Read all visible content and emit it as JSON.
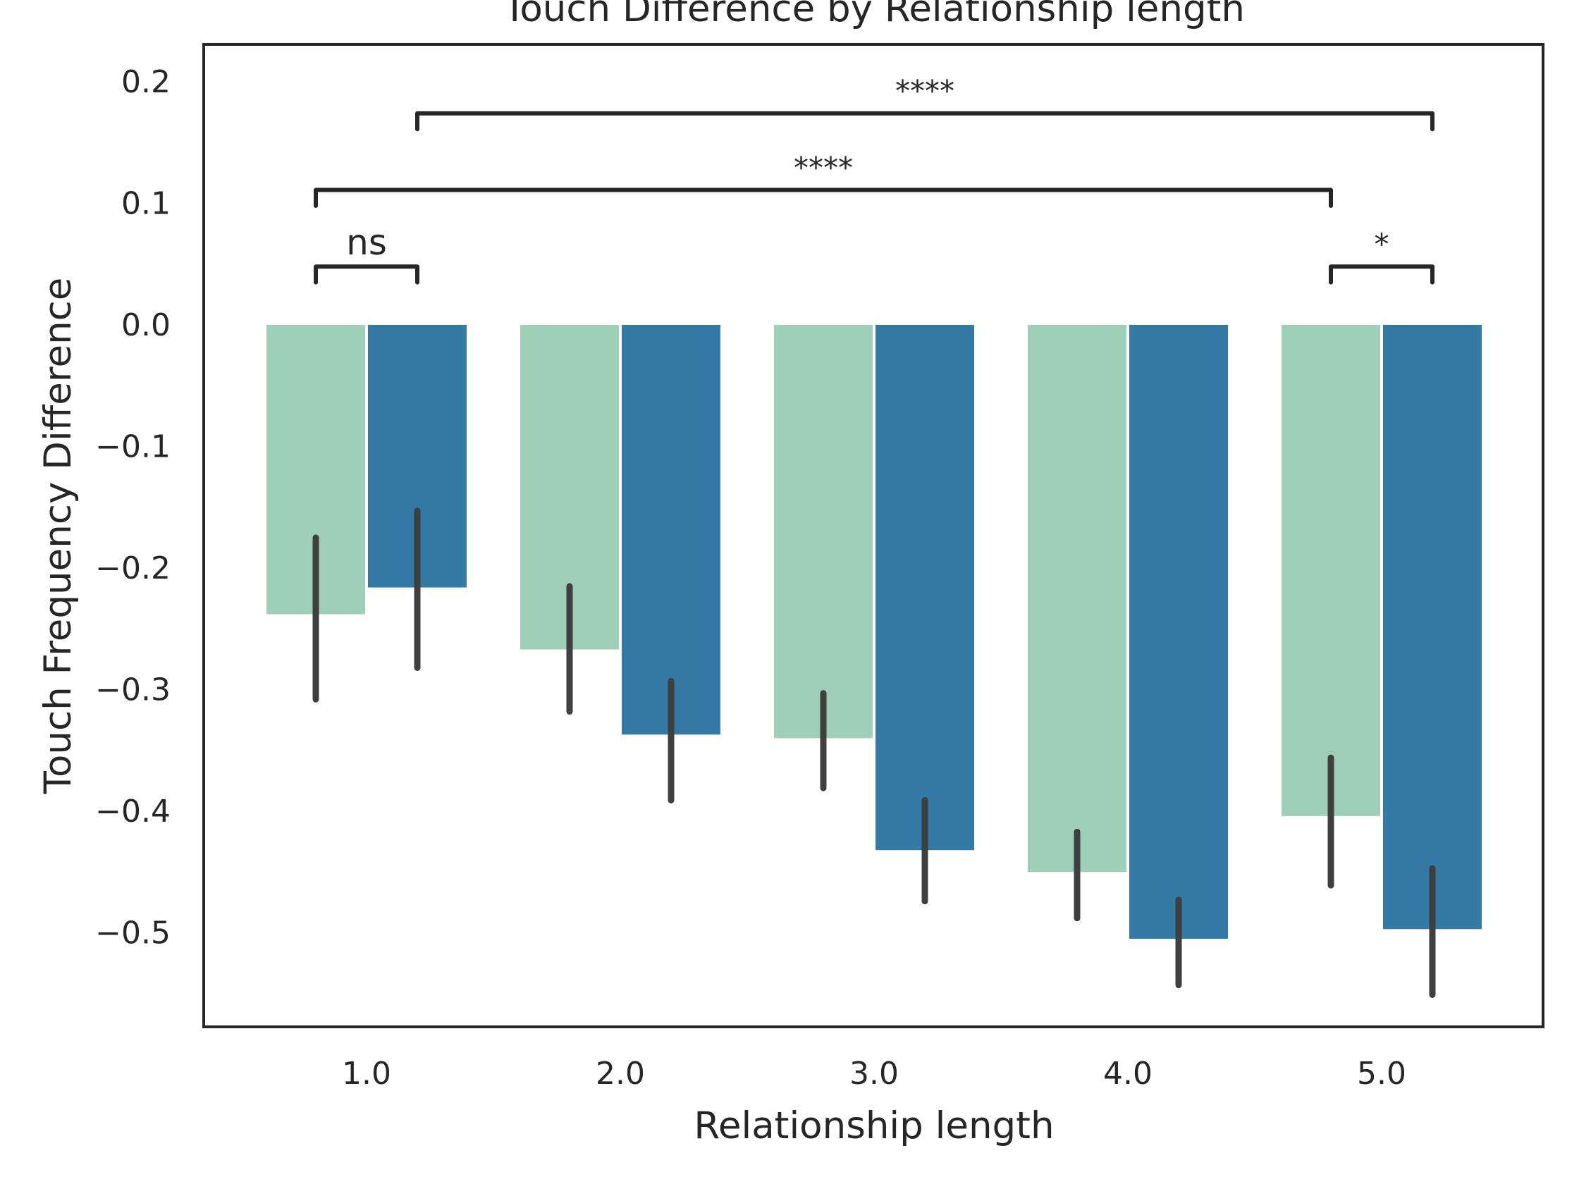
{
  "chart_data": {
    "type": "bar",
    "title": "Touch Difference by Relationship length",
    "xlabel": "Relationship length",
    "ylabel": "Touch Frequency Difference",
    "categories": [
      "1.0",
      "2.0",
      "3.0",
      "4.0",
      "5.0"
    ],
    "ylim": [
      -0.575,
      0.23
    ],
    "yticks": [
      0.2,
      0.1,
      0.0,
      -0.1,
      -0.2,
      -0.3,
      -0.4,
      -0.5
    ],
    "ytick_labels": [
      "0.2",
      "0.1",
      "0.0",
      "−0.1",
      "−0.2",
      "−0.3",
      "−0.4",
      "−0.5"
    ],
    "grid": false,
    "series": [
      {
        "color": "#9fcfb9",
        "values": [
          -0.238,
          -0.267,
          -0.34,
          -0.45,
          -0.404
        ],
        "ci_low": [
          -0.308,
          -0.318,
          -0.381,
          -0.488,
          -0.461
        ],
        "ci_high": [
          -0.175,
          -0.215,
          -0.303,
          -0.417,
          -0.356
        ]
      },
      {
        "color": "#337ba6",
        "values": [
          -0.216,
          -0.337,
          -0.432,
          -0.505,
          -0.497
        ],
        "ci_low": [
          -0.282,
          -0.391,
          -0.474,
          -0.543,
          -0.551
        ],
        "ci_high": [
          -0.153,
          -0.293,
          -0.391,
          -0.473,
          -0.447
        ]
      }
    ],
    "annotations": [
      {
        "text": "ns",
        "from": [
          0,
          0
        ],
        "to": [
          0,
          1
        ],
        "y": 0.048,
        "tick_bottom": 0.035,
        "text_y": 0.058,
        "size": "large"
      },
      {
        "text": "****",
        "from": [
          0,
          0
        ],
        "to": [
          4,
          0
        ],
        "y": 0.111,
        "tick_bottom": 0.098,
        "text_y": 0.121,
        "size": "small"
      },
      {
        "text": "****",
        "from": [
          0,
          1
        ],
        "to": [
          4,
          1
        ],
        "y": 0.174,
        "tick_bottom": 0.161,
        "text_y": 0.184,
        "size": "small"
      },
      {
        "text": "*",
        "from": [
          4,
          0
        ],
        "to": [
          4,
          1
        ],
        "y": 0.048,
        "tick_bottom": 0.035,
        "text_y": 0.058,
        "size": "small"
      }
    ],
    "error_bar_color": "#3f3f3f",
    "frame_color": "#262626"
  }
}
